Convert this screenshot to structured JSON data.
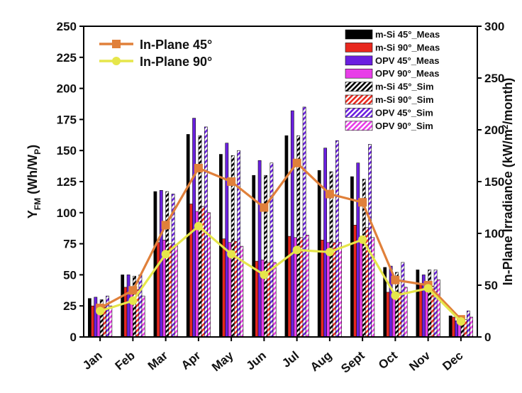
{
  "chart_data": {
    "type": "bar",
    "categories": [
      "Jan",
      "Feb",
      "Mar",
      "Apr",
      "May",
      "Jun",
      "Jul",
      "Aug",
      "Sept",
      "Oct",
      "Nov",
      "Dec"
    ],
    "y_left": {
      "label_main": "Y",
      "label_sub": "FM",
      "label_rest": " (Wh/W",
      "label_sub2": "P",
      "label_end": ")",
      "lim": [
        0,
        250
      ],
      "ticks": [
        0,
        25,
        50,
        75,
        100,
        125,
        150,
        175,
        200,
        225,
        250
      ]
    },
    "y_right": {
      "label_pre": "In-Plane Irradiance (kW/m",
      "label_sup": "2",
      "label_post": "/month)",
      "lim": [
        0,
        300
      ],
      "ticks": [
        0,
        50,
        100,
        150,
        200,
        250,
        300
      ]
    },
    "bar_series": [
      {
        "name": "m-Si 45°_Meas",
        "color": "#000000",
        "pattern": "solid",
        "values": [
          31,
          50,
          117,
          163,
          147,
          130,
          162,
          134,
          129,
          56,
          54,
          17
        ]
      },
      {
        "name": "m-Si 90°_Meas",
        "color": "#e8281e",
        "pattern": "solid",
        "values": [
          25,
          40,
          76,
          107,
          79,
          61,
          81,
          78,
          90,
          36,
          42,
          16
        ]
      },
      {
        "name": "OPV 45°_Meas",
        "color": "#6a1fe0",
        "pattern": "solid",
        "values": [
          32,
          50,
          118,
          176,
          156,
          142,
          182,
          152,
          140,
          57,
          50,
          13
        ]
      },
      {
        "name": "OPV 90°_Meas",
        "color": "#e83ee8",
        "pattern": "solid",
        "values": [
          24,
          40,
          78,
          101,
          76,
          62,
          80,
          76,
          81,
          36,
          44,
          15
        ]
      },
      {
        "name": "m-Si 45°_Sim",
        "color": "#000000",
        "pattern": "hatch",
        "values": [
          30,
          49,
          117,
          162,
          146,
          130,
          162,
          133,
          127,
          52,
          54,
          15
        ]
      },
      {
        "name": "m-Si 90°_Sim",
        "color": "#e8281e",
        "pattern": "hatch",
        "values": [
          24,
          38,
          75,
          105,
          77,
          60,
          80,
          76,
          88,
          36,
          41,
          14
        ]
      },
      {
        "name": "OPV 45°_Sim",
        "color": "#6a1fe0",
        "pattern": "hatch",
        "values": [
          33,
          50,
          115,
          169,
          150,
          140,
          185,
          158,
          155,
          60,
          54,
          21
        ]
      },
      {
        "name": "OPV 90°_Sim",
        "color": "#e83ee8",
        "pattern": "hatch",
        "values": [
          25,
          33,
          74,
          100,
          73,
          60,
          82,
          76,
          80,
          40,
          46,
          16
        ]
      }
    ],
    "line_series": [
      {
        "name": "In-Plane 45°",
        "color": "#e0803a",
        "marker": "square",
        "axis": "right",
        "values": [
          28,
          45,
          108,
          163,
          150,
          125,
          168,
          138,
          130,
          55,
          50,
          17
        ]
      },
      {
        "name": "In-Plane 90°",
        "color": "#e6e64a",
        "marker": "circle",
        "axis": "right",
        "values": [
          25,
          35,
          80,
          107,
          80,
          60,
          84,
          82,
          94,
          40,
          47,
          15
        ]
      }
    ]
  }
}
